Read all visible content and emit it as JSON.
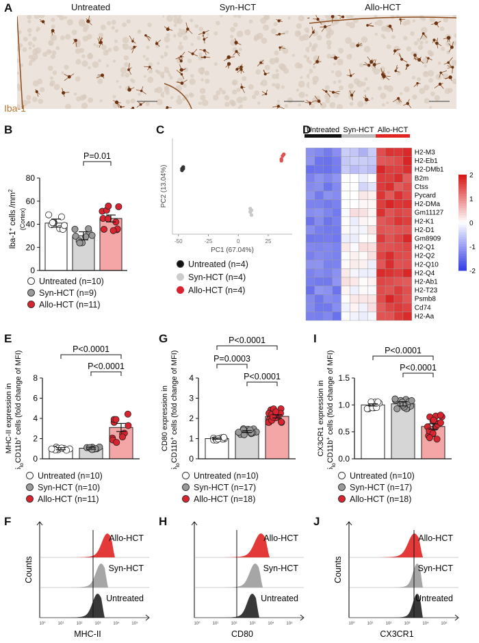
{
  "panel_letters": {
    "A": "A",
    "B": "B",
    "C": "C",
    "D": "D",
    "E": "E",
    "F": "F",
    "G": "G",
    "H": "H",
    "I": "I",
    "J": "J"
  },
  "colors": {
    "untreated": "#ffffff",
    "syn": "#c8c8c8",
    "allo": "#f2a3a3",
    "allo_dot": "#d9232e",
    "heat_hi": "#d7191c",
    "heat_lo": "#2c33d6"
  },
  "panel_a": {
    "titles": [
      "Untreated",
      "Syn-HCT",
      "Allo-HCT"
    ],
    "stain": "Iba-1"
  },
  "chart_data": [
    {
      "panel": "B",
      "type": "bar",
      "categories": [
        "Untreated",
        "Syn-HCT",
        "Allo-HCT"
      ],
      "values": [
        41,
        30,
        45
      ],
      "ylim": [
        0,
        80
      ],
      "yticks": [
        "0",
        "20",
        "40",
        "60",
        "80"
      ],
      "ylabel": "Iba-1+ cells /mm2 (Cortex)",
      "annotations": [
        "P=0.01"
      ],
      "legend": [
        "Untreated (n=10)",
        "Syn-HCT (n=9)",
        "Allo-HCT (n=11)"
      ]
    },
    {
      "panel": "C",
      "type": "scatter",
      "xlabel": "PC1 (67.04%)",
      "ylabel": "PC2 (13.04%)",
      "xticks": [
        "-50",
        "-25",
        "0",
        "25"
      ],
      "series": [
        {
          "name": "Untreated (n=4)",
          "x": [
            -47,
            -46,
            -47,
            -46
          ],
          "y": [
            6,
            7,
            5,
            6
          ]
        },
        {
          "name": "Syn-HCT (n=4)",
          "x": [
            10,
            11,
            10,
            11
          ],
          "y": [
            -21,
            -20,
            -19,
            -23
          ]
        },
        {
          "name": "Allo-HCT (n=4)",
          "x": [
            36,
            37,
            38,
            36
          ],
          "y": [
            12,
            14,
            15,
            11
          ]
        }
      ]
    },
    {
      "panel": "D",
      "type": "heatmap",
      "groups": [
        "Untreated",
        "Syn-HCT",
        "Allo-HCT"
      ],
      "genes": [
        "H2-M3",
        "H2-Eb1",
        "H2-DMb1",
        "B2m",
        "Ctss",
        "Pycard",
        "H2-DMa",
        "Gm11127",
        "H2-K1",
        "H2-D1",
        "Gm8909",
        "H2-Q1",
        "H2-Q2",
        "H2-Q10",
        "H2-Q4",
        "H2-Ab1",
        "H2-T23",
        "Psmb8",
        "Cd74",
        "H2-Aa"
      ],
      "scale_ticks": [
        "2",
        "1",
        "0",
        "-1",
        "-2"
      ]
    },
    {
      "panel": "E",
      "type": "bar",
      "categories": [
        "Untreated",
        "Syn-HCT",
        "Allo-HCT"
      ],
      "values": [
        1.0,
        1.05,
        3.1
      ],
      "ylim": [
        0,
        8
      ],
      "yticks": [
        "0",
        "2",
        "4",
        "6",
        "8"
      ],
      "ylabel": "MHC-II expression in CD45loCD11b+ cells (fold change of MFI)",
      "annotations": [
        "P<0.0001",
        "P<0.0001"
      ],
      "legend": [
        "Untreated (n=10)",
        "Syn-HCT (n=10)",
        "Allo-HCT (n=11)"
      ]
    },
    {
      "panel": "G",
      "type": "bar",
      "categories": [
        "Untreated",
        "Syn-HCT",
        "Allo-HCT"
      ],
      "values": [
        1.0,
        1.35,
        2.1
      ],
      "ylim": [
        0,
        4
      ],
      "yticks": [
        "0",
        "1",
        "2",
        "3",
        "4"
      ],
      "ylabel": "CD80 expression in CD45loCD11b+ cells (fold change of MFI)",
      "annotations": [
        "P<0.0001",
        "P=0.0003",
        "P<0.0001"
      ],
      "legend": [
        "Untreated (n=10)",
        "Syn-HCT (n=17)",
        "Allo-HCT (n=18)"
      ]
    },
    {
      "panel": "I",
      "type": "bar",
      "categories": [
        "Untreated",
        "Syn-HCT",
        "Allo-HCT"
      ],
      "values": [
        1.0,
        1.02,
        0.6
      ],
      "ylim": [
        0,
        1.5
      ],
      "yticks": [
        "0.0",
        "0.5",
        "1.0",
        "1.5"
      ],
      "ylabel": "CX3CR1 expression in CD45loCD11b+ cells (fold change of MFI)",
      "annotations": [
        "P<0.0001",
        "P<0.0001"
      ],
      "legend": [
        "Untreated (n=10)",
        "Syn-HCT (n=17)",
        "Allo-HCT (n=18)"
      ]
    },
    {
      "panel": "F",
      "type": "area",
      "tracks": [
        "Allo-HCT",
        "Syn-HCT",
        "Untreated"
      ],
      "xlabel": "MHC-II",
      "ylabel": "Counts",
      "xticks": [
        "10⁰",
        "10¹",
        "10²",
        "10³",
        "10⁴",
        "10⁵"
      ]
    },
    {
      "panel": "H",
      "type": "area",
      "tracks": [
        "Allo-HCT",
        "Syn-HCT",
        "Untreated"
      ],
      "xlabel": "CD80",
      "ylabel": "",
      "xticks": [
        "10⁰",
        "10¹",
        "10²",
        "10³",
        "10⁴",
        "10⁵"
      ]
    },
    {
      "panel": "J",
      "type": "area",
      "tracks": [
        "Allo-HCT",
        "Syn-HCT",
        "Untreated"
      ],
      "xlabel": "CX3CR1",
      "ylabel": "Counts",
      "xticks": [
        "10⁰",
        "10¹",
        "10²",
        "10³",
        "10⁴",
        "10⁵"
      ]
    }
  ]
}
